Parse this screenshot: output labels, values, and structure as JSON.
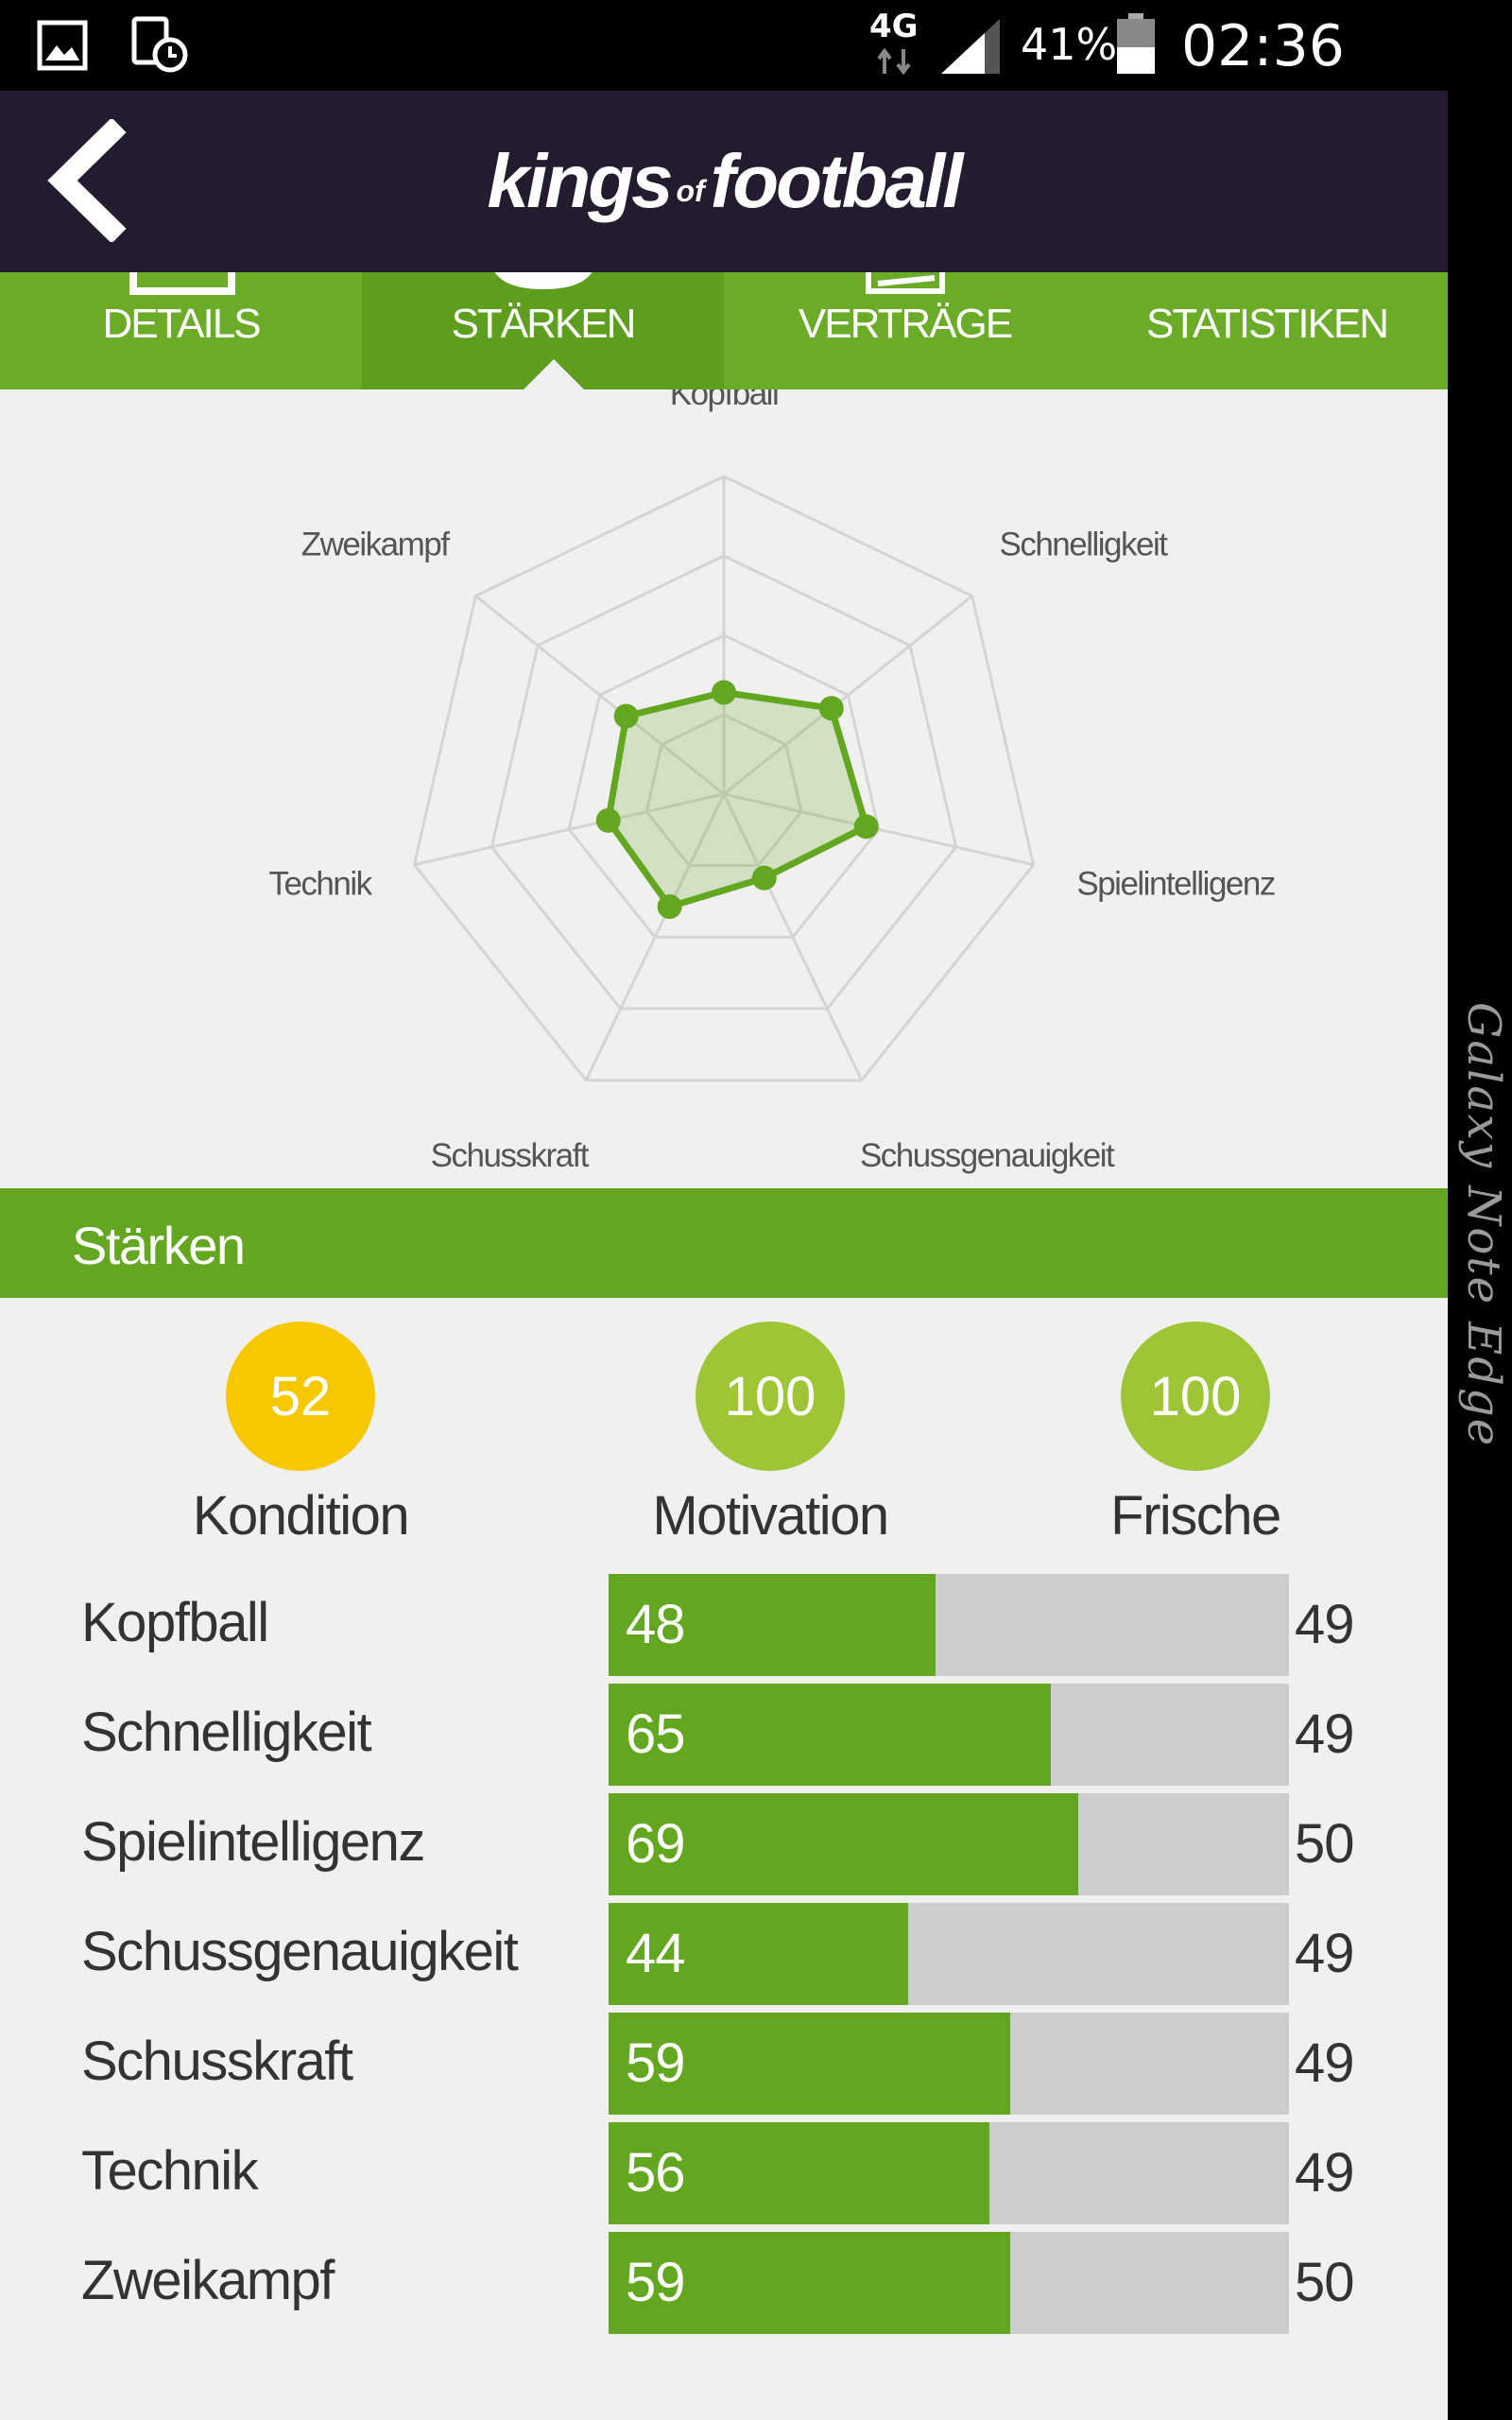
{
  "status_bar": {
    "network": "4G",
    "battery": "41%",
    "time": "02:36",
    "icons": [
      "gallery-icon",
      "schedule-icon",
      "signal-icon",
      "battery-icon"
    ]
  },
  "header": {
    "logo_part1": "kings",
    "logo_part2": "of",
    "logo_part3": "football"
  },
  "tabs": [
    {
      "label": "DETAILS",
      "active": false
    },
    {
      "label": "STÄRKEN",
      "active": true
    },
    {
      "label": "VERTRÄGE",
      "active": false
    },
    {
      "label": "STATISTIKEN",
      "active": false
    }
  ],
  "radar": {
    "axes": [
      "Kopfball",
      "Schnelligkeit",
      "Spielintelligenz",
      "Schussgenauigkeit",
      "Schusskraft",
      "Technik",
      "Zweikampf"
    ],
    "values": [
      48,
      65,
      69,
      44,
      59,
      56,
      59
    ],
    "max": 150
  },
  "section": {
    "title": "Stärken"
  },
  "indicators": [
    {
      "value": "52",
      "label": "Kondition",
      "color": "#f7c800"
    },
    {
      "value": "100",
      "label": "Motivation",
      "color": "#9dc536"
    },
    {
      "value": "100",
      "label": "Frische",
      "color": "#9dc536"
    }
  ],
  "stats": [
    {
      "name": "Kopfball",
      "value": 48,
      "avg": "49"
    },
    {
      "name": "Schnelligkeit",
      "value": 65,
      "avg": "49"
    },
    {
      "name": "Spielintelligenz",
      "value": 69,
      "avg": "50"
    },
    {
      "name": "Schussgenauigkeit",
      "value": 44,
      "avg": "49"
    },
    {
      "name": "Schusskraft",
      "value": 59,
      "avg": "49"
    },
    {
      "name": "Technik",
      "value": 56,
      "avg": "49"
    },
    {
      "name": "Zweikampf",
      "value": 59,
      "avg": "50"
    }
  ],
  "stat_scale_max": 100,
  "colors": {
    "header_bg": "#241c2e",
    "accent_green": "#62a71f",
    "track_grey": "#cdcdcd"
  },
  "device_edge_text": "Galaxy Note Edge"
}
